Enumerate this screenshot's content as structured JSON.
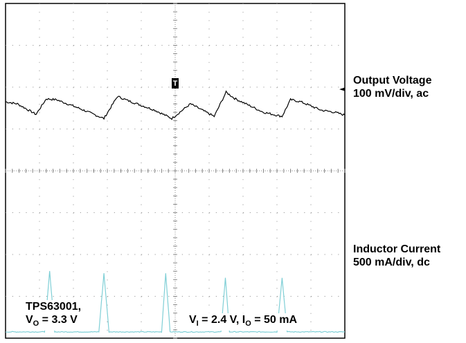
{
  "chart_data": {
    "type": "line",
    "title": "",
    "xlabel": "",
    "ylabel": "",
    "grid": true,
    "divisions": {
      "x": 10,
      "y": 8
    },
    "series": [
      {
        "name": "Output Voltage",
        "scale": "100 mV/div, ac",
        "color": "#000000",
        "unit": "div",
        "x": [
          0.0,
          0.35,
          0.9,
          1.2,
          1.5,
          2.15,
          2.9,
          3.3,
          3.6,
          4.4,
          4.9,
          5.45,
          6.15,
          6.5,
          6.75,
          7.6,
          8.15,
          8.4,
          8.7,
          9.3,
          9.7,
          10.0
        ],
        "y": [
          5.65,
          5.6,
          5.35,
          5.72,
          5.7,
          5.5,
          5.25,
          5.78,
          5.68,
          5.45,
          5.25,
          5.6,
          5.3,
          5.88,
          5.73,
          5.4,
          5.3,
          5.7,
          5.65,
          5.45,
          5.4,
          5.33
        ]
      },
      {
        "name": "Inductor Current",
        "scale": "500 mA/div, dc",
        "color": "#7fcfd6",
        "unit": "div",
        "x": [
          0.0,
          0.55,
          1.15,
          1.3,
          1.45,
          2.3,
          2.75,
          2.9,
          3.05,
          4.05,
          4.6,
          4.72,
          4.85,
          5.75,
          6.35,
          6.48,
          6.6,
          7.45,
          8.0,
          8.15,
          8.3,
          9.2,
          9.9,
          10.0
        ],
        "y": [
          0.15,
          0.15,
          0.15,
          1.6,
          0.15,
          0.15,
          0.15,
          1.55,
          0.15,
          0.15,
          0.15,
          1.55,
          0.15,
          0.15,
          0.15,
          1.45,
          0.15,
          0.15,
          0.15,
          1.45,
          0.15,
          0.15,
          0.15,
          0.15
        ]
      }
    ],
    "trigger_marker": "T",
    "channel_marker": "◄"
  },
  "labels": {
    "output_voltage": {
      "line1": "Output Voltage",
      "line2": "100 mV/div, ac"
    },
    "inductor_current": {
      "line1": "Inductor Current",
      "line2": "500 mA/div, dc"
    },
    "device": {
      "name": "TPS63001,",
      "vo_prefix": "V",
      "vo_sub": "O",
      "vo_value": " = 3.3 V"
    },
    "conditions": {
      "vi_prefix": "V",
      "vi_sub": "I",
      "vi_value": " = 2.4 V, I",
      "io_sub": "O",
      "io_value": " = 50 mA"
    }
  }
}
